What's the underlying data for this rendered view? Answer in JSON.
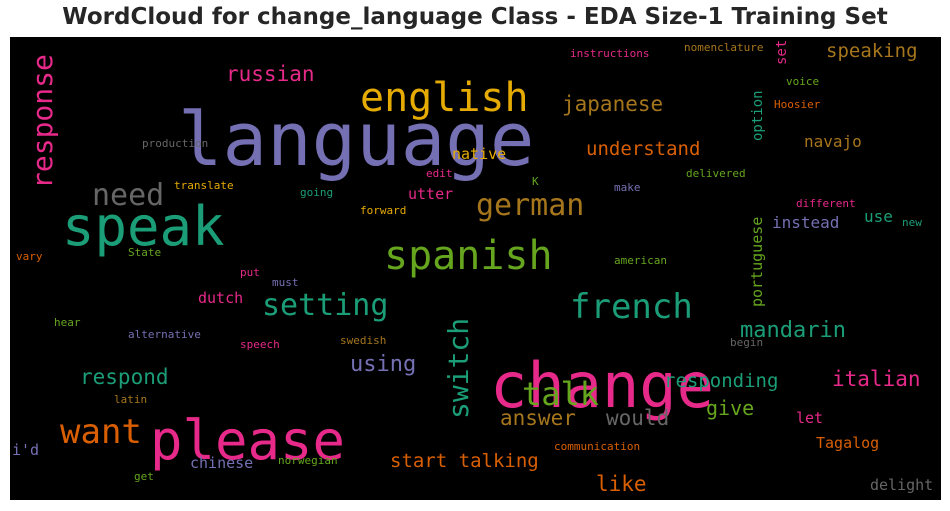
{
  "chart_data": {
    "type": "wordcloud",
    "title": "WordCloud for change_language Class - EDA Size-1 Training Set",
    "background": "#000000",
    "colormap": [
      "#1b9e77",
      "#d95f02",
      "#7570b3",
      "#e7298a",
      "#66a61e",
      "#e6ab02",
      "#a6761d",
      "#666666"
    ],
    "words": [
      {
        "text": "language",
        "color": "#7570b3"
      },
      {
        "text": "change",
        "color": "#e7298a"
      },
      {
        "text": "please",
        "color": "#e7298a"
      },
      {
        "text": "speak",
        "color": "#1b9e77"
      },
      {
        "text": "english",
        "color": "#e6ab02"
      },
      {
        "text": "spanish",
        "color": "#66a61e"
      },
      {
        "text": "french",
        "color": "#1b9e77"
      },
      {
        "text": "setting",
        "color": "#1b9e77"
      },
      {
        "text": "want",
        "color": "#d95f02"
      },
      {
        "text": "need",
        "color": "#666666"
      },
      {
        "text": "german",
        "color": "#a6761d"
      },
      {
        "text": "talk",
        "color": "#66a61e"
      },
      {
        "text": "switch",
        "color": "#1b9e77"
      },
      {
        "text": "response",
        "color": "#e7298a"
      },
      {
        "text": "russian",
        "color": "#e7298a"
      },
      {
        "text": "japanese",
        "color": "#a6761d"
      },
      {
        "text": "understand",
        "color": "#d95f02"
      },
      {
        "text": "mandarin",
        "color": "#1b9e77"
      },
      {
        "text": "italian",
        "color": "#e7298a"
      },
      {
        "text": "respond",
        "color": "#1b9e77"
      },
      {
        "text": "using",
        "color": "#7570b3"
      },
      {
        "text": "responding",
        "color": "#1b9e77"
      },
      {
        "text": "answer",
        "color": "#a6761d"
      },
      {
        "text": "would",
        "color": "#666666"
      },
      {
        "text": "give",
        "color": "#66a61e"
      },
      {
        "text": "start talking",
        "color": "#d95f02"
      },
      {
        "text": "like",
        "color": "#d95f02"
      },
      {
        "text": "speaking",
        "color": "#a6761d"
      },
      {
        "text": "navajo",
        "color": "#a6761d"
      },
      {
        "text": "portuguese",
        "color": "#66a61e"
      },
      {
        "text": "instead",
        "color": "#7570b3"
      },
      {
        "text": "use",
        "color": "#1b9e77"
      },
      {
        "text": "option",
        "color": "#1b9e77"
      },
      {
        "text": "set",
        "color": "#e7298a"
      },
      {
        "text": "native",
        "color": "#e6ab02"
      },
      {
        "text": "utter",
        "color": "#e7298a"
      },
      {
        "text": "dutch",
        "color": "#e7298a"
      },
      {
        "text": "chinese",
        "color": "#7570b3"
      },
      {
        "text": "Tagalog",
        "color": "#d95f02"
      },
      {
        "text": "let",
        "color": "#e7298a"
      },
      {
        "text": "delight",
        "color": "#666666"
      },
      {
        "text": "i'd",
        "color": "#7570b3"
      },
      {
        "text": "instructions",
        "color": "#e7298a"
      },
      {
        "text": "nomenclature",
        "color": "#a6761d"
      },
      {
        "text": "voice",
        "color": "#66a61e"
      },
      {
        "text": "Hoosier",
        "color": "#d95f02"
      },
      {
        "text": "production",
        "color": "#666666"
      },
      {
        "text": "translate",
        "color": "#e6ab02"
      },
      {
        "text": "edit",
        "color": "#e7298a"
      },
      {
        "text": "K",
        "color": "#66a61e"
      },
      {
        "text": "make",
        "color": "#7570b3"
      },
      {
        "text": "delivered",
        "color": "#66a61e"
      },
      {
        "text": "going",
        "color": "#1b9e77"
      },
      {
        "text": "forward",
        "color": "#e6ab02"
      },
      {
        "text": "different",
        "color": "#e7298a"
      },
      {
        "text": "new",
        "color": "#1b9e77"
      },
      {
        "text": "vary",
        "color": "#d95f02"
      },
      {
        "text": "State",
        "color": "#66a61e"
      },
      {
        "text": "american",
        "color": "#66a61e"
      },
      {
        "text": "put",
        "color": "#e7298a"
      },
      {
        "text": "must",
        "color": "#7570b3"
      },
      {
        "text": "hear",
        "color": "#66a61e"
      },
      {
        "text": "alternative",
        "color": "#7570b3"
      },
      {
        "text": "speech",
        "color": "#e7298a"
      },
      {
        "text": "swedish",
        "color": "#a6761d"
      },
      {
        "text": "begin",
        "color": "#666666"
      },
      {
        "text": "latin",
        "color": "#a6761d"
      },
      {
        "text": "communication",
        "color": "#d95f02"
      },
      {
        "text": "norwegian",
        "color": "#66a61e"
      },
      {
        "text": "get",
        "color": "#66a61e"
      }
    ]
  }
}
